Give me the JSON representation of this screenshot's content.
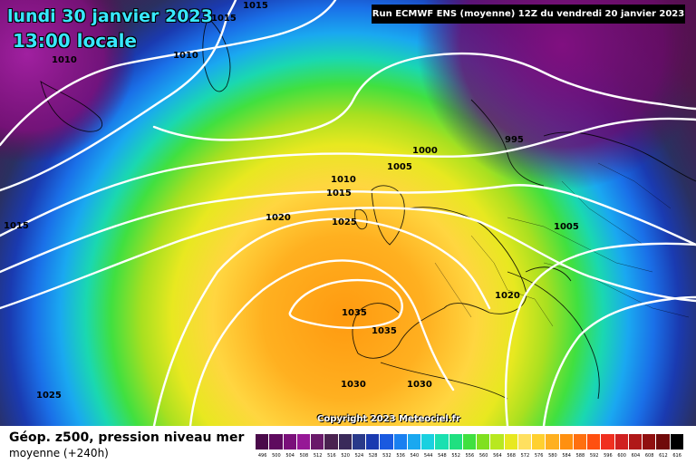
{
  "header": {
    "date": "lundi 30 janvier 2023",
    "time": "13:00 locale",
    "run": "Run ECMWF ENS (moyenne) 12Z du vendredi 20 janvier 2023"
  },
  "footer": {
    "title": "Géop. z500, pression niveau mer",
    "subtitle": "moyenne  (+240h)",
    "copyright": "Copyright 2023 Meteociel.fr"
  },
  "isobar_labels": [
    "1015",
    "1015",
    "1010",
    "1010",
    "995",
    "1000",
    "1005",
    "1010",
    "1015",
    "1020",
    "1025",
    "1015",
    "1005",
    "1020",
    "1035",
    "1035",
    "1030",
    "1030",
    "1025"
  ],
  "legend": {
    "values": [
      "496",
      "500",
      "504",
      "508",
      "512",
      "516",
      "520",
      "524",
      "528",
      "532",
      "536",
      "540",
      "544",
      "548",
      "552",
      "556",
      "560",
      "564",
      "568",
      "572",
      "576",
      "580",
      "584",
      "588",
      "592",
      "596",
      "600",
      "604",
      "608",
      "612",
      "616"
    ],
    "colors": [
      "#4a0a4a",
      "#5e0a5e",
      "#7a107a",
      "#961896",
      "#6a1a6a",
      "#4a2250",
      "#3a2a5a",
      "#2a3a8a",
      "#1a3ab0",
      "#1a5ae0",
      "#1a80f0",
      "#1aa8f0",
      "#1ad0e0",
      "#1ae0b0",
      "#20e080",
      "#40e040",
      "#80e020",
      "#b8e820",
      "#e8e820",
      "#ffe060",
      "#ffd030",
      "#ffb020",
      "#ff9010",
      "#ff7010",
      "#ff5010",
      "#f03020",
      "#d02020",
      "#b01818",
      "#901010",
      "#700a0a",
      "#000000"
    ]
  }
}
